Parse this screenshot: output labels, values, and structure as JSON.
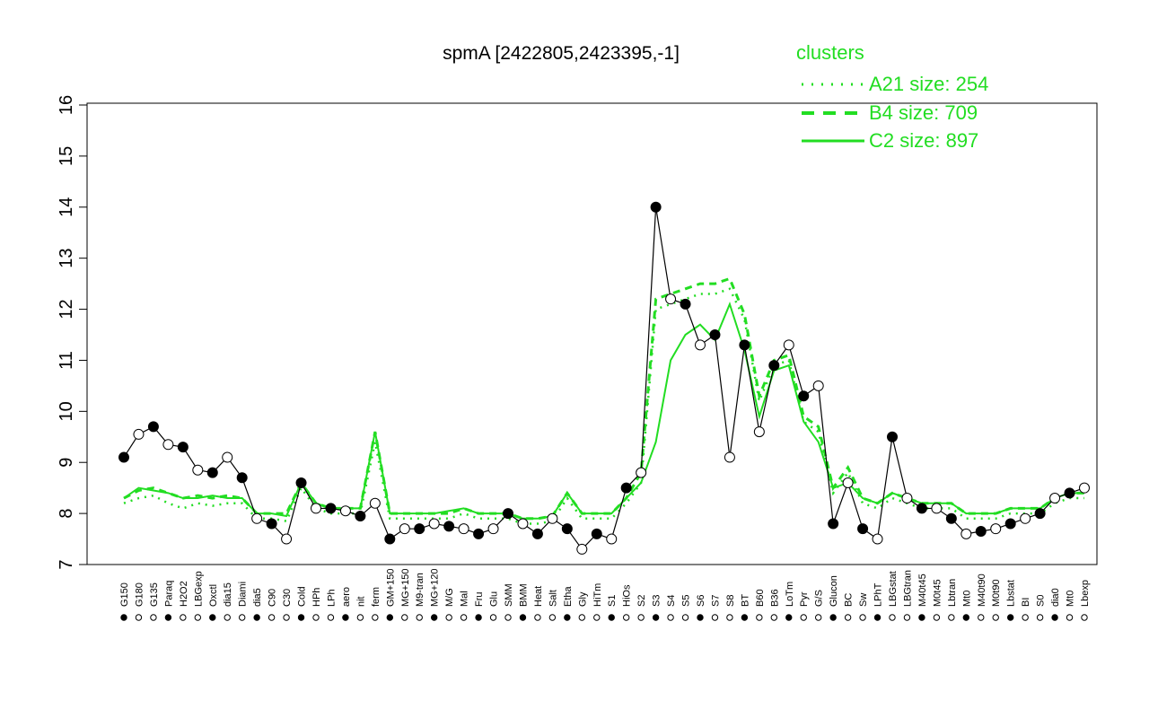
{
  "chart_data": {
    "type": "line",
    "title": "spmA [2422805,2423395,-1]",
    "xlabel": "",
    "ylabel": "",
    "ylim": [
      7,
      16
    ],
    "yticks": [
      7,
      8,
      9,
      10,
      11,
      12,
      13,
      14,
      15,
      16
    ],
    "legend": {
      "title": "clusters",
      "placement": "top-right",
      "entries": [
        {
          "label": "A21 size: 254",
          "style": "dotted"
        },
        {
          "label": "B4 size: 709",
          "style": "dashed"
        },
        {
          "label": "C2 size: 897",
          "style": "solid"
        }
      ]
    },
    "x_tick_labels": [
      "G150",
      "G180",
      "G135",
      "Paraq",
      "H2O2",
      "LBGexp",
      "Oxctl",
      "dia15",
      "Diami",
      "dia5",
      "C90",
      "C30",
      "Cold",
      "HPh",
      "LPh",
      "aero",
      "nit",
      "ferm",
      "GM+150",
      "MG+150",
      "M9-tran",
      "MG+120",
      "M/G",
      "Mal",
      "Fru",
      "Glu",
      "SMM",
      "BMM",
      "Heat",
      "Salt",
      "Etha",
      "Gly",
      "HiTm",
      "S1",
      "HiOs",
      "S2",
      "S3",
      "S4",
      "S5",
      "S6",
      "S7",
      "S8",
      "BT",
      "B60",
      "B36",
      "LoTm",
      "Pyr",
      "G/S",
      "Glucon",
      "BC",
      "Sw",
      "LPhT",
      "LBGstat",
      "LBGtran",
      "M40t45",
      "M0t45",
      "Lbtran",
      "Mt0",
      "M40t90",
      "M0t90",
      "Lbstat",
      "BI",
      "S0",
      "dia0",
      "Mt0",
      "Lbexp"
    ],
    "series": [
      {
        "name": "A21 size: 254",
        "style": "dotted",
        "values": [
          8.2,
          8.3,
          8.35,
          8.2,
          8.1,
          8.2,
          8.15,
          8.2,
          8.2,
          7.9,
          7.9,
          7.85,
          8.5,
          8.1,
          8.0,
          8.0,
          8.0,
          9.4,
          7.9,
          7.9,
          7.9,
          7.9,
          7.9,
          8.0,
          7.9,
          7.9,
          7.9,
          7.8,
          7.8,
          7.85,
          8.3,
          7.9,
          7.9,
          7.9,
          8.2,
          8.6,
          12.0,
          12.1,
          12.2,
          12.3,
          12.3,
          12.4,
          11.8,
          10.2,
          10.9,
          11.0,
          9.8,
          9.6,
          8.4,
          8.8,
          8.2,
          8.1,
          8.3,
          8.2,
          8.1,
          8.1,
          8.1,
          7.9,
          7.9,
          7.9,
          8.0,
          8.0,
          8.0,
          8.2,
          8.3,
          8.3
        ]
      },
      {
        "name": "B4 size: 709",
        "style": "dashed",
        "values": [
          8.3,
          8.45,
          8.5,
          8.4,
          8.3,
          8.35,
          8.3,
          8.35,
          8.3,
          8.0,
          8.0,
          8.0,
          8.6,
          8.2,
          8.1,
          8.1,
          8.1,
          9.6,
          8.0,
          8.0,
          8.0,
          8.0,
          8.0,
          8.1,
          8.0,
          8.0,
          8.0,
          7.9,
          7.9,
          7.95,
          8.4,
          8.0,
          8.0,
          8.0,
          8.3,
          8.8,
          12.2,
          12.3,
          12.4,
          12.5,
          12.5,
          12.6,
          11.9,
          10.3,
          11.0,
          11.1,
          9.9,
          9.7,
          8.5,
          8.9,
          8.3,
          8.2,
          8.4,
          8.3,
          8.2,
          8.2,
          8.2,
          8.0,
          8.0,
          8.0,
          8.1,
          8.1,
          8.1,
          8.3,
          8.4,
          8.4
        ]
      },
      {
        "name": "C2 size: 897",
        "style": "solid",
        "values": [
          8.3,
          8.5,
          8.45,
          8.4,
          8.3,
          8.3,
          8.35,
          8.3,
          8.3,
          8.0,
          8.0,
          7.95,
          8.6,
          8.2,
          8.1,
          8.1,
          8.1,
          9.6,
          8.0,
          8.0,
          8.0,
          8.0,
          8.05,
          8.1,
          8.0,
          8.0,
          8.0,
          7.9,
          7.9,
          7.95,
          8.4,
          8.0,
          8.0,
          8.0,
          8.3,
          8.6,
          9.4,
          11.0,
          11.5,
          11.7,
          11.4,
          12.1,
          11.2,
          9.9,
          10.8,
          10.9,
          9.8,
          9.4,
          8.5,
          8.6,
          8.3,
          8.2,
          8.4,
          8.3,
          8.2,
          8.2,
          8.2,
          8.0,
          8.0,
          8.0,
          8.1,
          8.1,
          8.1,
          8.3,
          8.4,
          8.4
        ]
      },
      {
        "name": "",
        "style": "points",
        "values": [
          9.1,
          9.55,
          9.7,
          9.35,
          9.3,
          8.85,
          8.8,
          9.1,
          8.7,
          7.9,
          7.8,
          7.5,
          8.6,
          8.1,
          8.1,
          8.05,
          7.95,
          8.2,
          7.5,
          7.7,
          7.7,
          7.8,
          7.75,
          7.7,
          7.6,
          7.7,
          8.0,
          7.8,
          7.6,
          7.9,
          7.7,
          7.3,
          7.6,
          7.5,
          8.5,
          8.8,
          14.0,
          12.2,
          12.1,
          11.3,
          11.5,
          9.1,
          11.3,
          9.6,
          10.9,
          11.3,
          10.3,
          10.5,
          7.8,
          8.6,
          7.7,
          7.5,
          9.5,
          8.3,
          8.1,
          8.1,
          7.9,
          7.6,
          7.65,
          7.7,
          7.8,
          7.9,
          8.0,
          8.3,
          8.4,
          8.5
        ]
      }
    ]
  }
}
